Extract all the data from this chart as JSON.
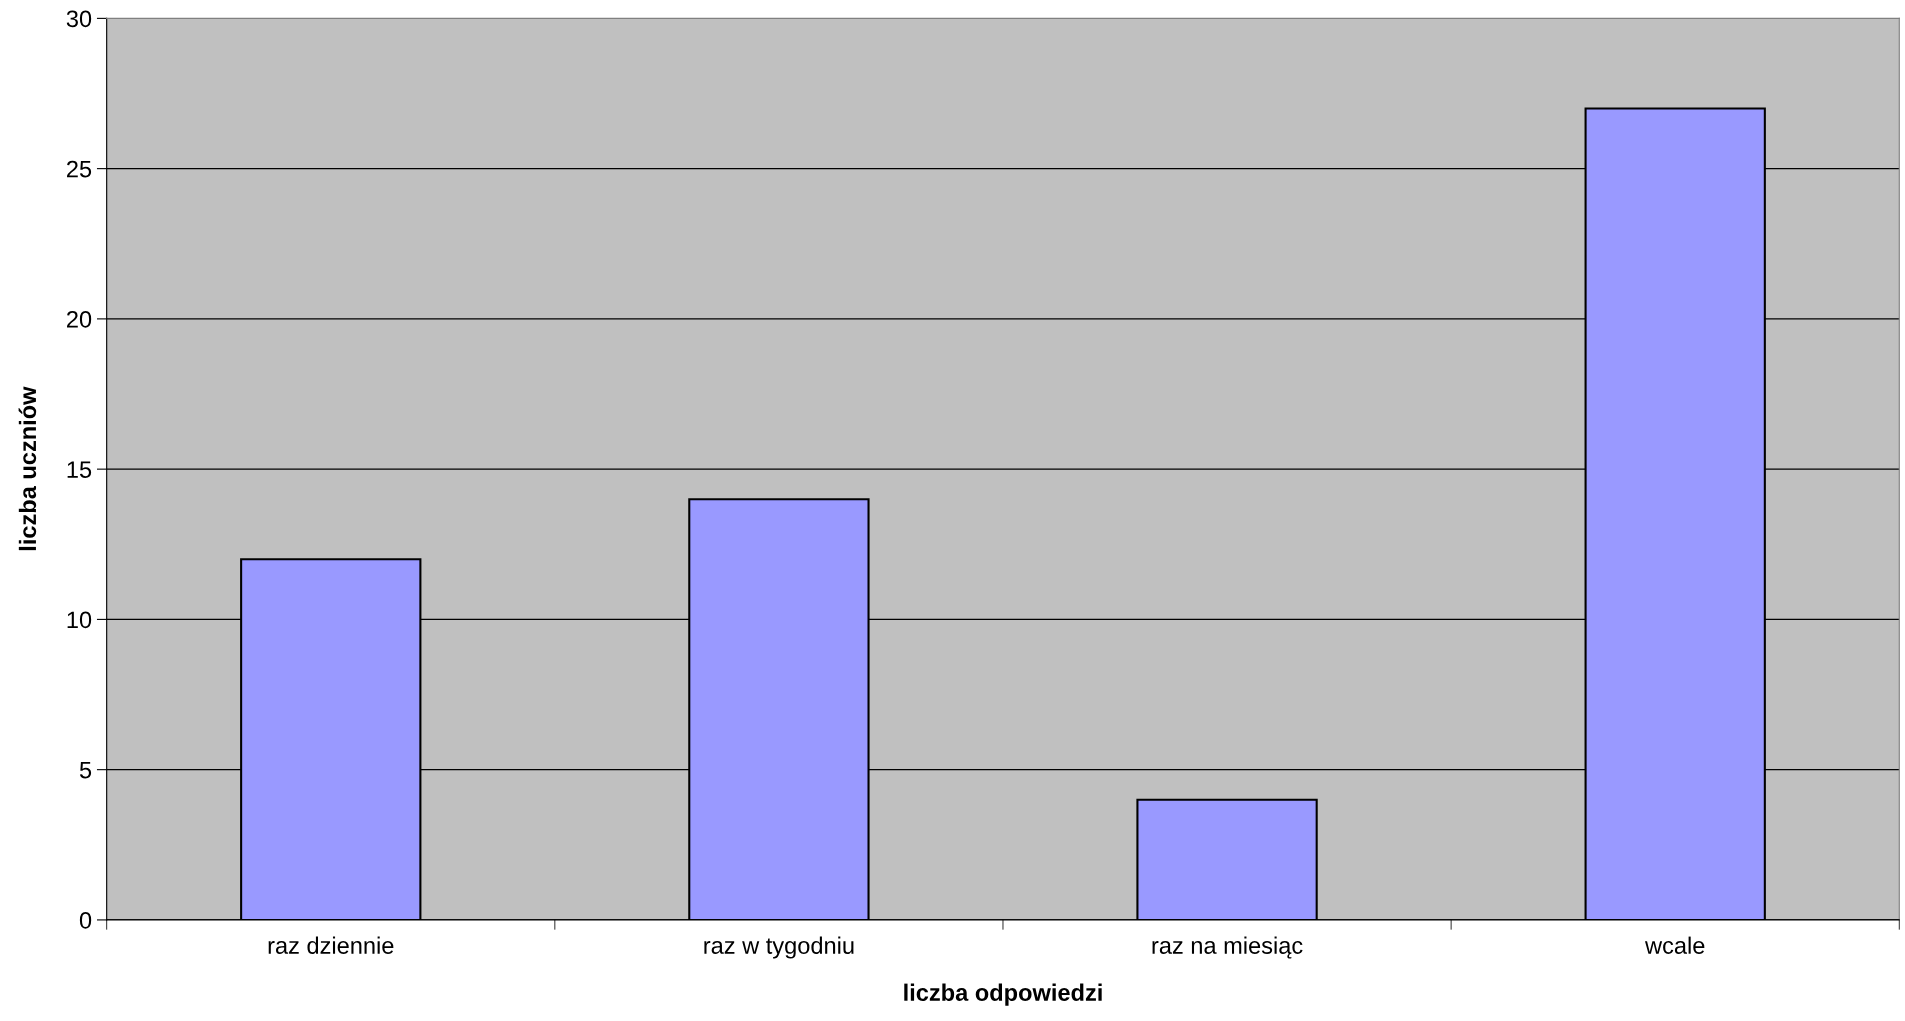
{
  "chart_data": {
    "type": "bar",
    "xlabel": "liczba odpowiedzi",
    "ylabel": "liczba uczniów",
    "categories": [
      "raz dziennie",
      "raz w tygodniu",
      "raz na miesiąc",
      "wcale"
    ],
    "values": [
      12,
      14,
      4,
      27
    ],
    "color": "#9999ff",
    "ylim": [
      0,
      30
    ],
    "yticks": [
      0,
      5,
      10,
      15,
      20,
      25,
      30
    ],
    "grid": "y",
    "legend": false
  }
}
